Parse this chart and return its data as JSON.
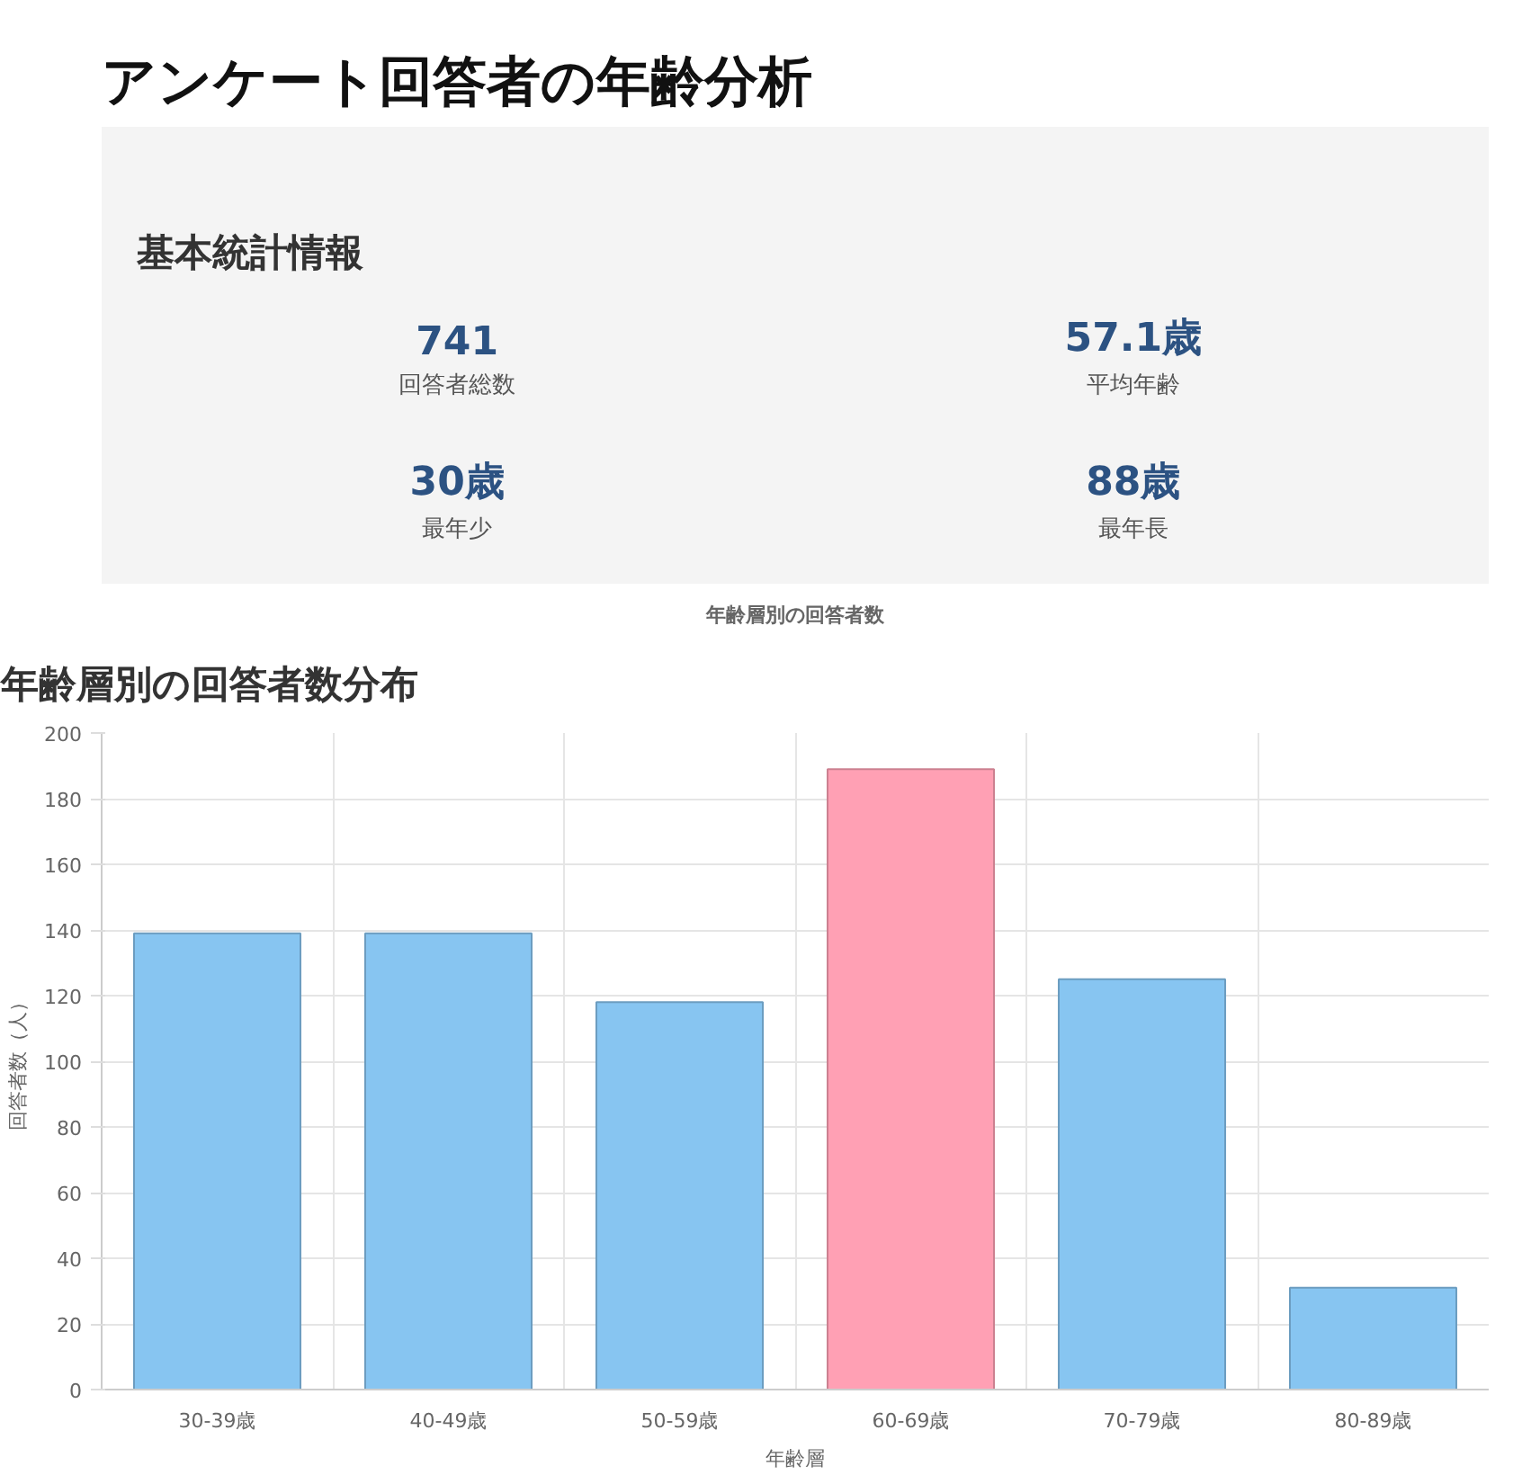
{
  "chart_data": [
    {
      "type": "other",
      "title": "アンケート回答者の年齢分析",
      "subtitle": "基本統計情報",
      "annotations": [
        "741",
        "回答者総数",
        "57.1歳",
        "平均年齢",
        "30歳",
        "最年少",
        "88歳",
        "最年長"
      ]
    },
    {
      "type": "bar",
      "title": "年齢層別の回答者数分布",
      "subtitle": "年齢層別の回答者数",
      "xlabel": "年齢層",
      "ylabel": "回答者数（人）",
      "categories": [
        "30-39歳",
        "40-49歳",
        "50-59歳",
        "60-69歳",
        "70-79歳",
        "80-89歳"
      ],
      "values": [
        139,
        139,
        118,
        189,
        125,
        31
      ],
      "colors": [
        "#87c5f1",
        "#87c5f1",
        "#87c5f1",
        "#ffa0b4",
        "#87c5f1",
        "#87c5f1"
      ],
      "ylim": [
        0,
        200
      ],
      "yticks": [
        0,
        20,
        40,
        60,
        80,
        100,
        120,
        140,
        160,
        180,
        200
      ],
      "grid": true
    }
  ]
}
